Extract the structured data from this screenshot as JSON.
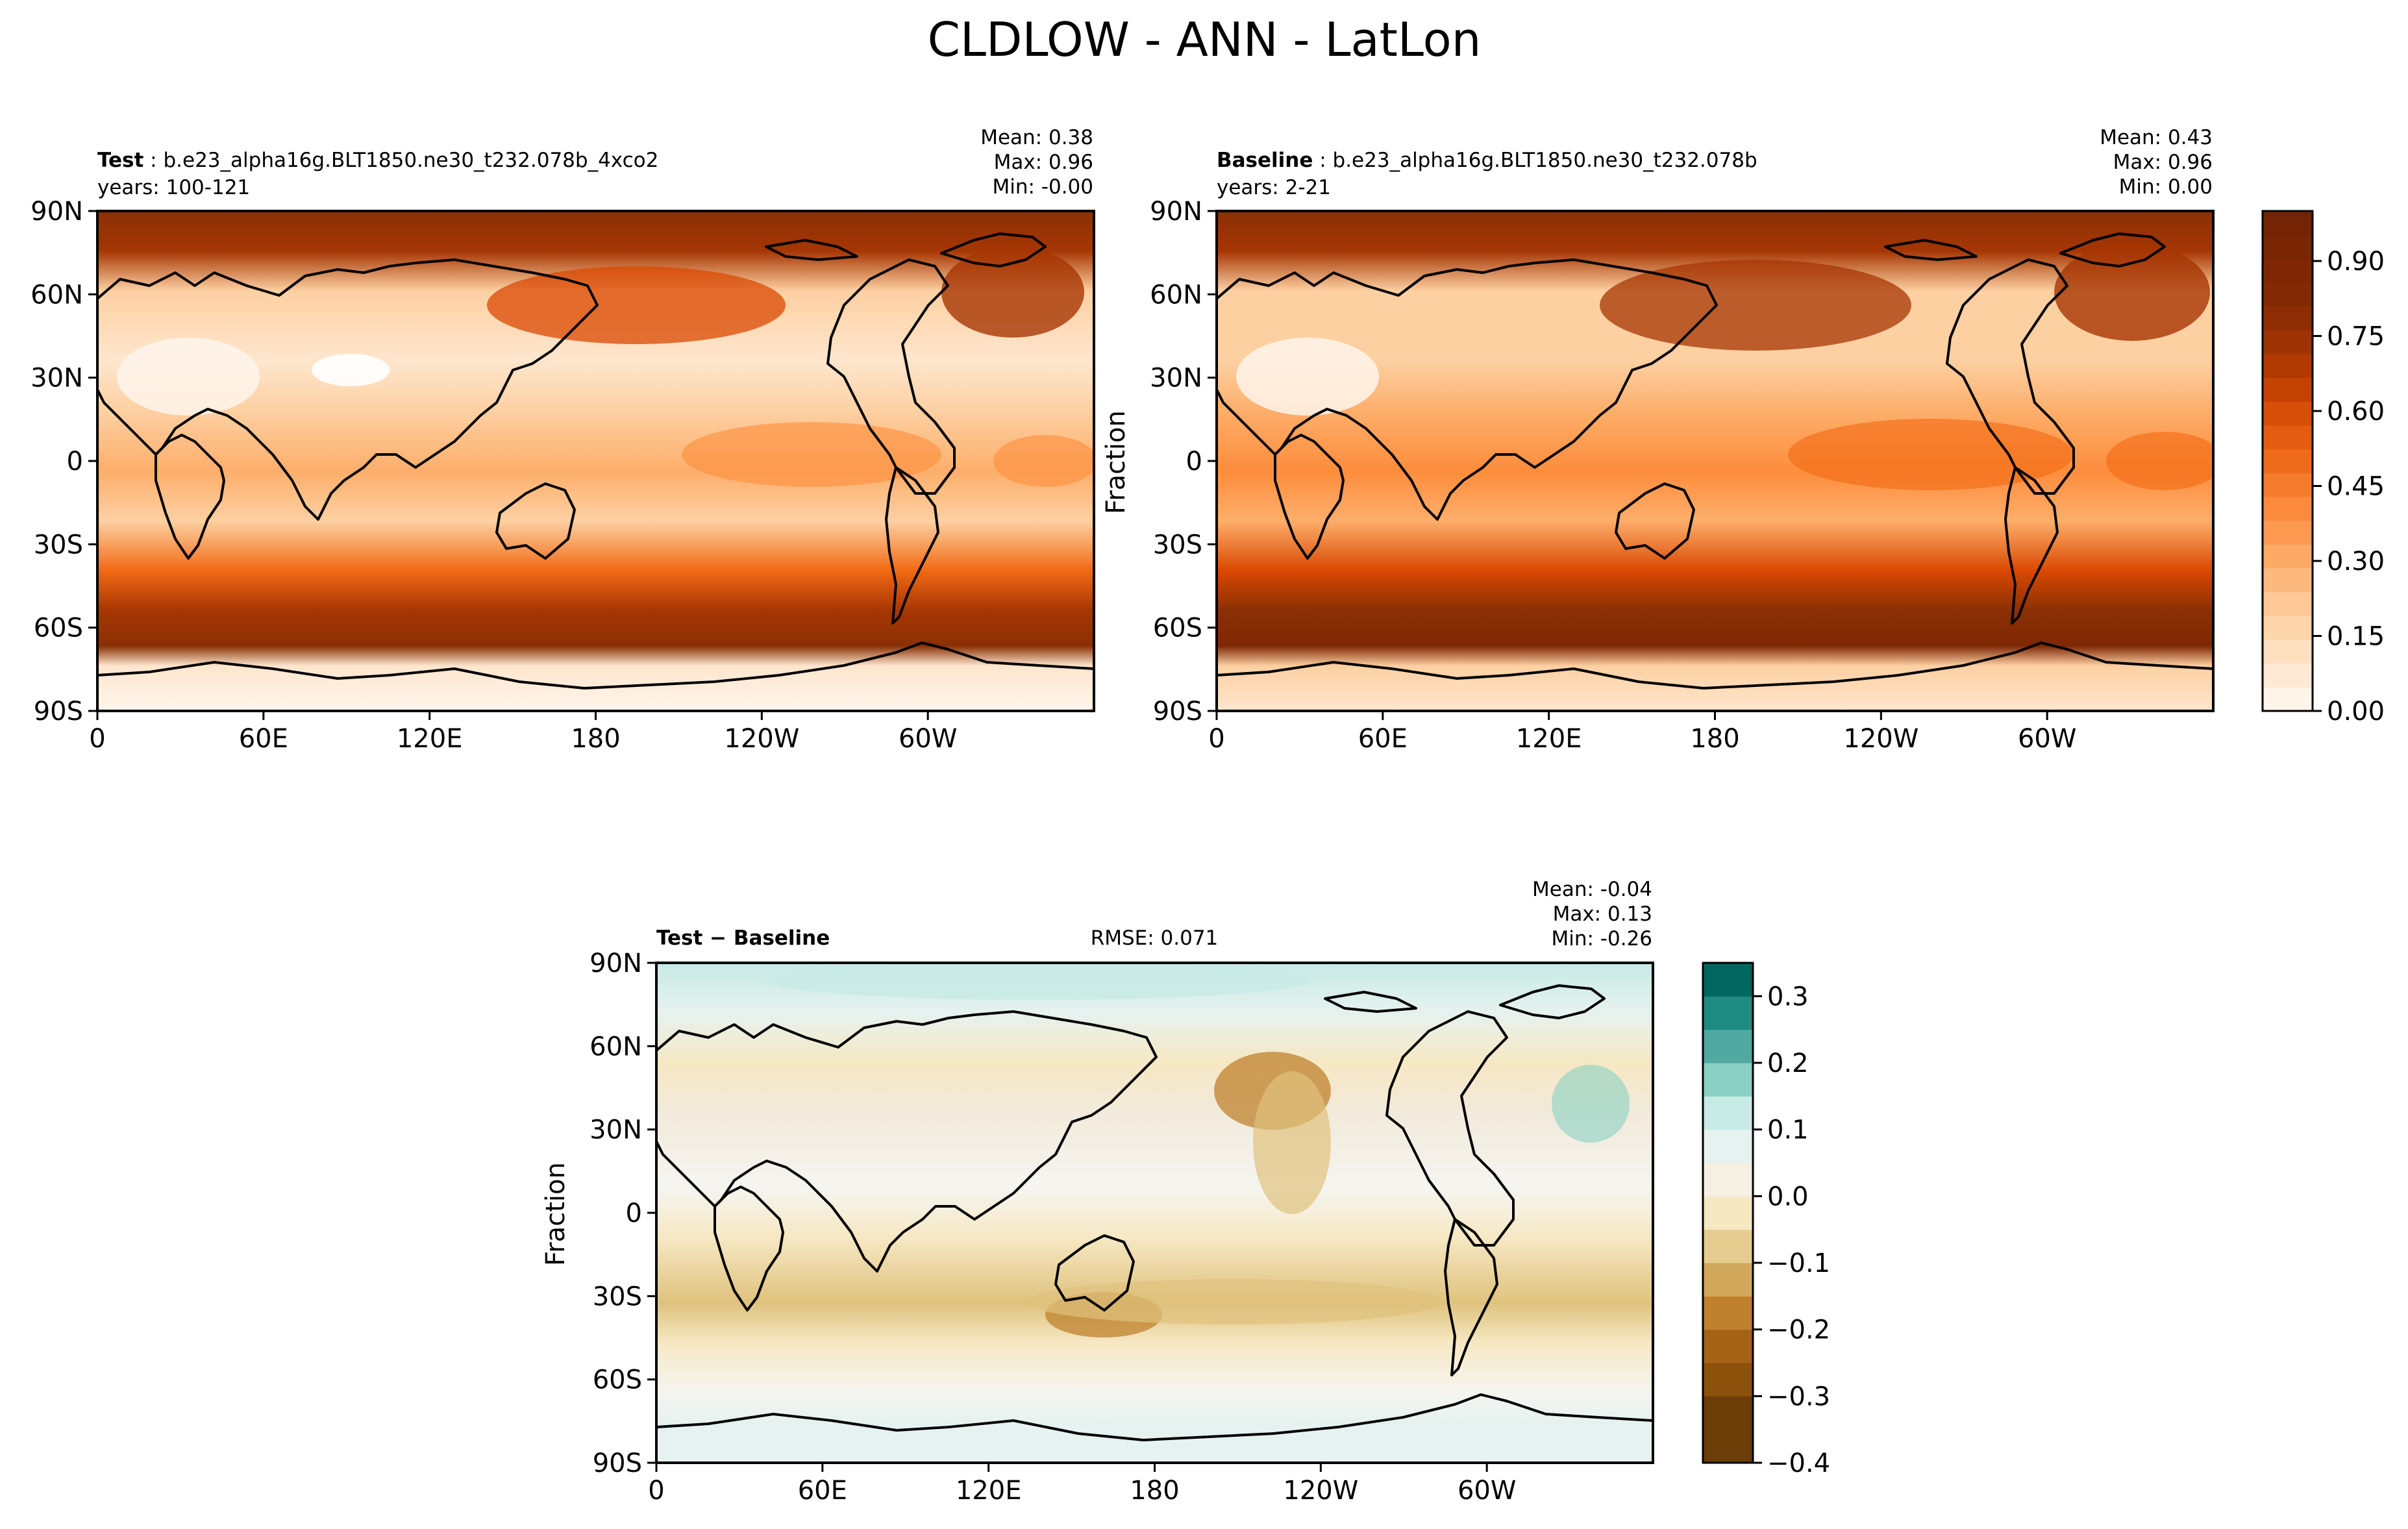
{
  "figure": {
    "title": "CLDLOW - ANN - LatLon"
  },
  "panels": {
    "test": {
      "label_bold": "Test",
      "label_rest": " : b.e23_alpha16g.BLT1850.ne30_t232.078b_4xco2",
      "years": "years: 100-121",
      "stats": [
        "Mean:  0.38",
        "Max:  0.96",
        "Min: -0.00"
      ]
    },
    "baseline": {
      "label_bold": "Baseline",
      "label_rest": " : b.e23_alpha16g.BLT1850.ne30_t232.078b",
      "years": "years: 2-21",
      "stats": [
        "Mean:  0.43",
        "Max:  0.96",
        "Min:  0.00"
      ],
      "ylabel": "Fraction"
    },
    "diff": {
      "label": "Test − Baseline",
      "rmse": "RMSE: 0.071",
      "stats": [
        "Mean: -0.04",
        "Max:  0.13",
        "Min: -0.26"
      ],
      "ylabel": "Fraction"
    }
  },
  "colors": {
    "sequential_low": "#fff5eb",
    "sequential_high": "#7f2704",
    "diverging_pos": "#01665e",
    "diverging_neg": "#8c510a",
    "coastline": "#000000"
  },
  "chart_data": [
    {
      "type": "heatmap",
      "name": "test",
      "x_ticks": [
        "0",
        "60E",
        "120E",
        "180",
        "120W",
        "60W"
      ],
      "y_ticks": [
        "90N",
        "60N",
        "30N",
        "0",
        "30S",
        "60S",
        "90S"
      ],
      "xlim": [
        0,
        360
      ],
      "ylim": [
        -90,
        90
      ],
      "zonal_mean_approx": [
        0.85,
        0.3,
        0.85,
        0.55,
        0.35,
        0.45,
        0.4,
        0.45,
        0.6,
        0.75,
        0.9,
        0.85,
        0.1
      ],
      "stats": {
        "mean": 0.38,
        "max": 0.96,
        "min": -0.0
      }
    },
    {
      "type": "heatmap",
      "name": "baseline",
      "x_ticks": [
        "0",
        "60E",
        "120E",
        "180",
        "120W",
        "60W"
      ],
      "y_ticks": [
        "90N",
        "60N",
        "30N",
        "0",
        "30S",
        "60S",
        "90S"
      ],
      "xlim": [
        0,
        360
      ],
      "ylim": [
        -90,
        90
      ],
      "zonal_mean_approx": [
        0.85,
        0.35,
        0.85,
        0.6,
        0.4,
        0.5,
        0.45,
        0.5,
        0.65,
        0.8,
        0.92,
        0.9,
        0.15
      ],
      "stats": {
        "mean": 0.43,
        "max": 0.96,
        "min": 0.0
      }
    },
    {
      "type": "heatmap",
      "name": "difference",
      "x_ticks": [
        "0",
        "60E",
        "120E",
        "180",
        "120W",
        "60W"
      ],
      "y_ticks": [
        "90N",
        "60N",
        "30N",
        "0",
        "30S",
        "60S",
        "90S"
      ],
      "xlim": [
        0,
        360
      ],
      "ylim": [
        -90,
        90
      ],
      "zonal_mean_approx": [
        0.05,
        -0.06,
        -0.08,
        -0.04,
        0.0,
        -0.03,
        -0.02,
        -0.04,
        -0.06,
        -0.03,
        0.0,
        -0.02,
        0.02
      ],
      "stats": {
        "mean": -0.04,
        "max": 0.13,
        "min": -0.26,
        "rmse": 0.071
      }
    }
  ],
  "colorbars": {
    "sequential": {
      "range": [
        0.0,
        1.0
      ],
      "levels": 21,
      "tick_values": [
        0.0,
        0.15,
        0.3,
        0.45,
        0.6,
        0.75,
        0.9
      ],
      "tick_labels": [
        "0.00",
        "0.15",
        "0.30",
        "0.45",
        "0.60",
        "0.75",
        "0.90"
      ]
    },
    "diverging": {
      "range": [
        -0.4,
        0.35
      ],
      "levels": 15,
      "tick_values": [
        0.3,
        0.2,
        0.1,
        0.0,
        -0.1,
        -0.2,
        -0.3,
        -0.4
      ],
      "tick_labels": [
        "0.3",
        "0.2",
        "0.1",
        "0.0",
        "−0.1",
        "−0.2",
        "−0.3",
        "−0.4"
      ]
    }
  }
}
